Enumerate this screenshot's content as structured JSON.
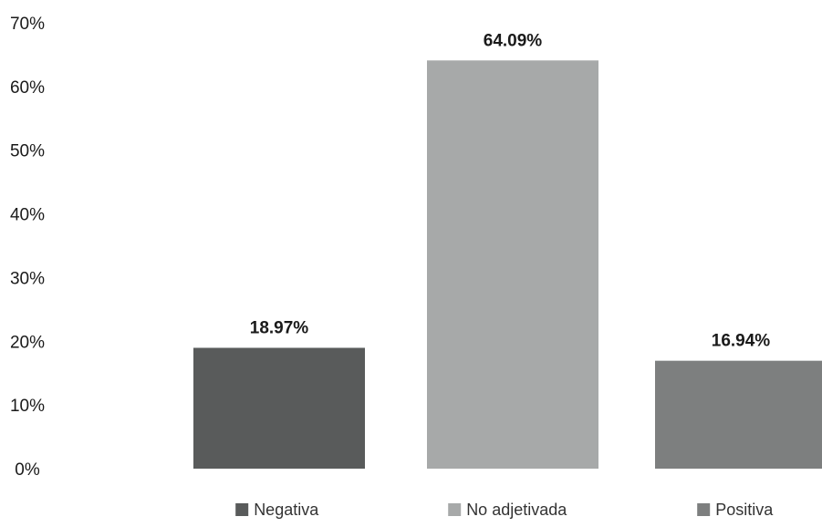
{
  "chart_data": {
    "type": "bar",
    "categories": [
      "Negativa",
      "No adjetivada",
      "Positiva"
    ],
    "values": [
      18.97,
      64.09,
      16.94
    ],
    "value_labels": [
      "18.97%",
      "64.09%",
      "16.94%"
    ],
    "colors": [
      "#595b5b",
      "#a7a9a9",
      "#7d7f7f"
    ],
    "title": "",
    "xlabel": "",
    "ylabel": "",
    "ylim": [
      0,
      70
    ],
    "yticks": [
      0,
      10,
      20,
      30,
      40,
      50,
      60,
      70
    ],
    "ytick_labels": [
      "0%",
      "10%",
      "20%",
      "30%",
      "40%",
      "50%",
      "60%",
      "70%"
    ],
    "grid": false,
    "legend": {
      "placement": "bottom",
      "entries": [
        "Negativa",
        "No adjetivada",
        "Positiva"
      ]
    }
  }
}
